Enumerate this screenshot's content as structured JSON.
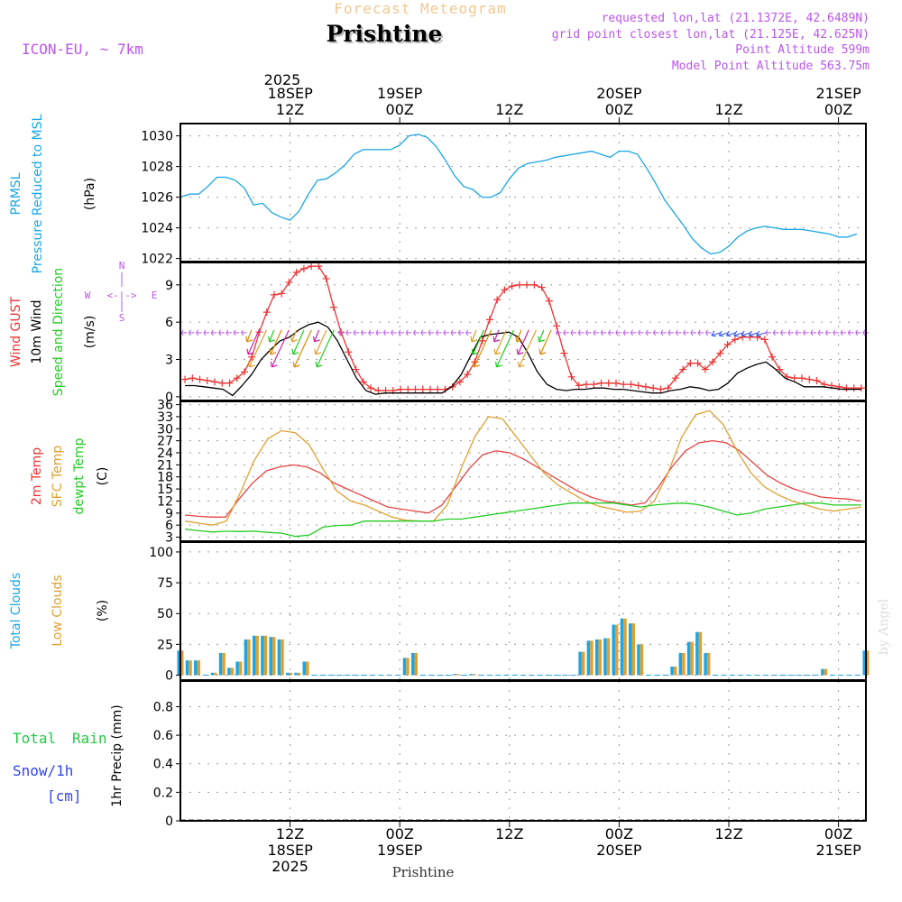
{
  "header": {
    "model": "ICON-EU, ~ 7km",
    "product": "Forecast Meteogram",
    "city": "Prishtine",
    "requested": "requested lon,lat (21.1372E, 42.6489N)",
    "grid": "grid point closest lon,lat (21.125E, 42.625N)",
    "alt": "Point Altitude 599m",
    "model_alt": "Model Point Altitude 563.75m",
    "year_top": "2025",
    "credit": "by Angel",
    "bottom_city": "Prishtine"
  },
  "colors": {
    "pressure": "#1aa6e6",
    "gust": "#ee3333",
    "wind": "#000000",
    "dir": "#22cc22",
    "temp": "#e84444",
    "sfc": "#e0a030",
    "dew": "#22cc22",
    "total_clouds": "#1aa6e6",
    "low_clouds": "#e0a030",
    "purple": "#bb55ee",
    "rain": "#22cc44",
    "snow": "#3344ee"
  },
  "time_axis": {
    "top": [
      {
        "t": 12,
        "l1": "18SEP",
        "l2": "12Z"
      },
      {
        "t": 24,
        "l1": "19SEP",
        "l2": "00Z"
      },
      {
        "t": 36,
        "l1": "",
        "l2": "12Z"
      },
      {
        "t": 48,
        "l1": "20SEP",
        "l2": "00Z"
      },
      {
        "t": 60,
        "l1": "",
        "l2": "12Z"
      },
      {
        "t": 72,
        "l1": "21SEP",
        "l2": "00Z"
      }
    ],
    "bottom": [
      {
        "t": 12,
        "l1": "12Z",
        "l2": "18SEP",
        "l3": "2025"
      },
      {
        "t": 24,
        "l1": "00Z",
        "l2": "19SEP",
        "l3": ""
      },
      {
        "t": 36,
        "l1": "12Z",
        "l2": "",
        "l3": ""
      },
      {
        "t": 48,
        "l1": "00Z",
        "l2": "20SEP",
        "l3": ""
      },
      {
        "t": 60,
        "l1": "12Z",
        "l2": "",
        "l3": ""
      },
      {
        "t": 72,
        "l1": "00Z",
        "l2": "21SEP",
        "l3": ""
      }
    ]
  },
  "labels": {
    "p1": [
      "PRMSL",
      "Pressure Reduced to MSL",
      "(hPa)"
    ],
    "p2": [
      "Wind GUST",
      "10m Wind",
      "Speed and Direction",
      "(m/s)"
    ],
    "compass": {
      "n": "N",
      "s": "S",
      "w": "W",
      "e": "E",
      "arrows": "<-|->"
    },
    "p3": [
      "2m Temp",
      "SFC Temp",
      "dewpt Temp",
      "(C)"
    ],
    "p4": [
      "Total Clouds",
      "Low Clouds",
      "(%)"
    ],
    "p5": [
      "Total",
      "Rain",
      "Snow/1h",
      "[cm]",
      "1hr Precip (mm)"
    ]
  },
  "chart_data": [
    {
      "type": "line",
      "title": "PRMSL Pressure Reduced to MSL",
      "ylabel": "(hPa)",
      "ylim": [
        1021.8,
        1030.8
      ],
      "yticks": [
        1022,
        1024,
        1026,
        1028,
        1030
      ],
      "x_hours_from_18SEP00Z_start": 0,
      "series": [
        {
          "name": "PRMSL",
          "values": [
            1026.0,
            1026.2,
            1026.2,
            1026.7,
            1027.3,
            1027.3,
            1027.1,
            1026.6,
            1025.5,
            1025.6,
            1025.0,
            1024.7,
            1024.5,
            1025.1,
            1026.2,
            1027.1,
            1027.2,
            1027.6,
            1028.1,
            1028.8,
            1029.1,
            1029.1,
            1029.1,
            1029.1,
            1029.4,
            1030.0,
            1030.1,
            1029.9,
            1029.3,
            1028.4,
            1027.4,
            1026.7,
            1026.5,
            1026.0,
            1026.0,
            1026.3,
            1027.2,
            1027.9,
            1028.2,
            1028.3,
            1028.4,
            1028.6,
            1028.7,
            1028.8,
            1028.9,
            1029.0,
            1028.8,
            1028.6,
            1029.0,
            1029.0,
            1028.8,
            1027.9,
            1026.9,
            1025.8,
            1025.0,
            1024.2,
            1023.3,
            1022.7,
            1022.3,
            1022.4,
            1022.8,
            1023.4,
            1023.8,
            1024.0,
            1024.1,
            1024.0,
            1023.9,
            1023.9,
            1023.9,
            1023.8,
            1023.7,
            1023.6,
            1023.4,
            1023.4,
            1023.6
          ]
        }
      ]
    },
    {
      "type": "line",
      "title": "Wind GUST / 10m Wind Speed and Direction",
      "ylabel": "(m/s)",
      "ylim": [
        -0.3,
        10.8
      ],
      "yticks": [
        0,
        3,
        6,
        9
      ],
      "series": [
        {
          "name": "Wind GUST",
          "values": [
            1.4,
            1.5,
            1.4,
            1.3,
            1.2,
            1.1,
            1.1,
            1.5,
            2.0,
            3.2,
            5.2,
            6.8,
            8.2,
            8.3,
            9.2,
            10.0,
            10.3,
            10.5,
            10.5,
            9.5,
            7.2,
            5.2,
            3.6,
            2.2,
            1.2,
            0.7,
            0.5,
            0.5,
            0.5,
            0.6,
            0.6,
            0.6,
            0.6,
            0.6,
            0.6,
            0.6,
            0.8,
            1.2,
            1.8,
            2.8,
            4.5,
            6.2,
            7.8,
            8.6,
            8.9,
            9.0,
            9.0,
            9.0,
            8.8,
            7.7,
            5.7,
            3.5,
            1.6,
            0.9,
            1.0,
            1.0,
            1.1,
            1.1,
            1.1,
            1.0,
            1.0,
            0.9,
            0.8,
            0.7,
            0.6,
            0.7,
            1.5,
            2.2,
            2.7,
            2.7,
            2.2,
            2.8,
            3.5,
            4.2,
            4.6,
            4.8,
            4.8,
            4.8,
            4.6,
            3.2,
            2.2,
            1.6,
            1.5,
            1.5,
            1.4,
            1.3,
            1.0,
            0.9,
            0.8,
            0.7,
            0.7,
            0.7
          ]
        },
        {
          "name": "10m Wind",
          "values": [
            0.9,
            0.9,
            0.8,
            0.7,
            0.6,
            0.1,
            0.9,
            1.8,
            3.0,
            3.8,
            4.5,
            4.8,
            5.4,
            5.8,
            6.0,
            5.6,
            4.5,
            3.0,
            1.5,
            0.5,
            0.2,
            0.3,
            0.3,
            0.3,
            0.3,
            0.3,
            0.3,
            0.3,
            0.8,
            1.8,
            3.3,
            4.8,
            5.0,
            5.1,
            5.2,
            4.8,
            3.5,
            2.0,
            1.0,
            0.6,
            0.5,
            0.6,
            0.6,
            0.7,
            0.7,
            0.6,
            0.6,
            0.5,
            0.4,
            0.3,
            0.3,
            0.5,
            0.6,
            0.8,
            0.7,
            0.5,
            0.6,
            1.1,
            1.9,
            2.3,
            2.6,
            2.8,
            2.2,
            1.5,
            1.2,
            0.8,
            0.8,
            0.8,
            0.7,
            0.6,
            0.6,
            0.6
          ]
        }
      ]
    },
    {
      "type": "line",
      "title": "2m Temp / SFC Temp / dewpt Temp",
      "ylabel": "(C)",
      "ylim": [
        2.0,
        36.8
      ],
      "yticks": [
        3,
        6,
        9,
        12,
        15,
        18,
        21,
        24,
        27,
        30,
        33,
        36
      ],
      "series": [
        {
          "name": "2m Temp",
          "values": [
            8.5,
            8.2,
            8.0,
            8.0,
            12.5,
            16.5,
            19.5,
            20.5,
            21.0,
            20.5,
            19.0,
            16.5,
            15.0,
            13.5,
            12.0,
            10.5,
            10.0,
            9.5,
            9.0,
            11.0,
            15.5,
            20.0,
            23.5,
            24.5,
            24.0,
            22.5,
            20.5,
            18.5,
            16.5,
            14.5,
            13.0,
            12.0,
            11.5,
            11.0,
            11.5,
            15.5,
            20.5,
            24.5,
            26.5,
            27.0,
            26.5,
            24.5,
            21.5,
            18.5,
            16.5,
            15.0,
            14.0,
            13.0,
            12.7,
            12.5,
            12.0
          ]
        },
        {
          "name": "SFC Temp",
          "values": [
            7.0,
            6.5,
            6.0,
            7.0,
            14.0,
            22.0,
            27.5,
            29.5,
            29.0,
            26.0,
            20.0,
            14.5,
            12.0,
            11.0,
            9.5,
            8.0,
            7.2,
            7.0,
            7.0,
            11.0,
            20.0,
            28.0,
            33.0,
            32.5,
            28.0,
            23.5,
            19.0,
            16.0,
            14.0,
            12.0,
            10.7,
            10.0,
            9.2,
            9.5,
            12.0,
            19.0,
            28.0,
            33.5,
            34.5,
            31.0,
            24.5,
            19.0,
            15.5,
            13.5,
            12.0,
            11.0,
            10.0,
            9.5,
            10.0,
            10.5
          ]
        },
        {
          "name": "dewpt Temp",
          "values": [
            5.0,
            4.6,
            4.3,
            4.5,
            4.4,
            4.5,
            4.2,
            4.0,
            3.2,
            3.5,
            5.5,
            5.9,
            6.0,
            7.0,
            7.0,
            7.0,
            7.0,
            7.0,
            7.0,
            7.5,
            7.5,
            8.0,
            8.5,
            9.0,
            9.5,
            10.0,
            10.5,
            11.0,
            11.5,
            11.5,
            11.5,
            11.5,
            11.0,
            10.5,
            11.0,
            11.3,
            11.5,
            11.2,
            10.5,
            9.5,
            8.5,
            9.0,
            10.0,
            10.5,
            11.0,
            11.5,
            11.5,
            11.0,
            11.0,
            11.0
          ]
        }
      ]
    },
    {
      "type": "bar",
      "title": "Total Clouds / Low Clouds",
      "ylabel": "(%)",
      "ylim": [
        -4,
        108
      ],
      "yticks": [
        0,
        25,
        50,
        75,
        100
      ],
      "series": [
        {
          "name": "Total Clouds",
          "values": [
            20,
            12,
            12,
            0,
            2,
            18,
            6,
            11,
            29,
            32,
            32,
            31,
            29,
            2,
            2,
            11,
            0,
            0,
            0,
            0,
            0,
            0,
            0,
            0,
            0,
            0,
            0,
            14,
            18,
            0,
            0,
            0,
            0,
            1,
            0,
            1,
            0,
            0,
            0,
            0,
            0,
            0,
            0,
            0,
            0,
            0,
            0,
            0,
            19,
            28,
            29,
            30,
            41,
            46,
            42,
            25,
            0,
            0,
            0,
            7,
            18,
            27,
            35,
            18,
            0,
            0,
            0,
            0,
            0,
            0,
            0,
            0,
            0,
            0,
            0,
            0,
            0,
            5,
            0,
            0,
            0,
            0,
            20
          ]
        },
        {
          "name": "Low Clouds",
          "values": [
            20,
            12,
            12,
            0,
            2,
            18,
            6,
            11,
            29,
            32,
            32,
            31,
            29,
            2,
            2,
            11,
            0,
            0,
            0,
            0,
            0,
            0,
            0,
            0,
            0,
            0,
            0,
            14,
            18,
            0,
            0,
            0,
            0,
            1,
            0,
            1,
            0,
            0,
            0,
            0,
            0,
            0,
            0,
            0,
            0,
            0,
            0,
            0,
            19,
            28,
            29,
            30,
            41,
            46,
            42,
            25,
            0,
            0,
            0,
            7,
            18,
            27,
            35,
            18,
            0,
            0,
            0,
            0,
            0,
            0,
            0,
            0,
            0,
            0,
            0,
            0,
            0,
            5,
            0,
            0,
            0,
            0,
            20
          ]
        }
      ]
    },
    {
      "type": "bar",
      "title": "Total Rain / Snow 1hr Precip",
      "ylabel": "1hr Precip (mm)",
      "ylim": [
        0,
        0.98
      ],
      "yticks": [
        0,
        0.2,
        0.4,
        0.6,
        0.8
      ],
      "ytick_labels": [
        "0",
        "0.2",
        "0.4",
        "0.6",
        "0.8"
      ],
      "series": [
        {
          "name": "Total Rain",
          "values": []
        },
        {
          "name": "Snow/1h",
          "values": []
        }
      ]
    }
  ]
}
